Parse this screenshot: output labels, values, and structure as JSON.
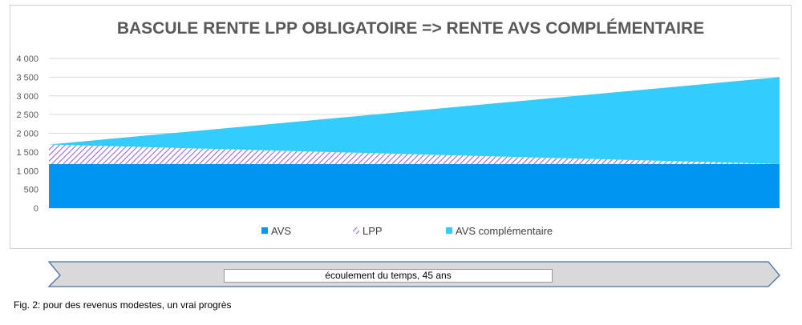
{
  "chart_data": {
    "type": "area",
    "stacked": true,
    "title": "BASCULE RENTE LPP OBLIGATOIRE => RENTE AVS COMPLÉMENTAIRE",
    "xlabel": "",
    "ylabel": "",
    "ylim": [
      0,
      4000
    ],
    "yticks": [
      0,
      500,
      1000,
      1500,
      2000,
      2500,
      3000,
      3500,
      4000
    ],
    "ytick_labels": [
      "0",
      "500",
      "1 000",
      "1 500",
      "2 000",
      "2 500",
      "3 000",
      "3 500",
      "4 000"
    ],
    "grid": true,
    "legend_position": "bottom",
    "x": [
      0,
      45
    ],
    "series": [
      {
        "name": "AVS",
        "values": [
          1180,
          1180
        ],
        "color": "#0095f0",
        "pattern": "solid"
      },
      {
        "name": "LPP",
        "values": [
          520,
          0
        ],
        "color": "#9966e0",
        "pattern": "hatch"
      },
      {
        "name": "AVS complémentaire",
        "values": [
          0,
          2320
        ],
        "color": "#33ccff",
        "pattern": "solid"
      }
    ]
  },
  "timeline": {
    "label": "écoulement du temps, 45 ans",
    "fill_color": "#d9d9d9",
    "border_color": "#4a6fa5"
  },
  "caption": "Fig. 2: pour des revenus modestes, un vrai progrès"
}
